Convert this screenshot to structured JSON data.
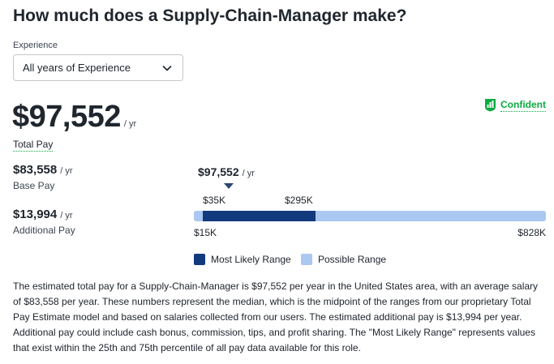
{
  "header": {
    "title": "How much does a Supply-Chain-Manager make?"
  },
  "experience": {
    "label": "Experience",
    "selected": "All years of Experience"
  },
  "confidence": {
    "label": "Confident",
    "color": "#0caa41"
  },
  "total_pay": {
    "value": "$97,552",
    "unit": "/ yr",
    "label": "Total Pay"
  },
  "base_pay": {
    "value": "$83,558",
    "unit": "/ yr",
    "label": "Base Pay"
  },
  "additional_pay": {
    "value": "$13,994",
    "unit": "/ yr",
    "label": "Additional Pay"
  },
  "range": {
    "median_label": "$97,552",
    "median_unit": "/ yr",
    "likely_low_label": "$35K",
    "likely_high_label": "$295K",
    "possible_low_label": "$15K",
    "possible_high_label": "$828K",
    "possible_low": 15,
    "possible_high": 828,
    "likely_low": 35,
    "likely_high": 295,
    "median": 97.552,
    "likely_color": "#133a7c",
    "possible_color": "#aac8f2"
  },
  "legend": {
    "likely": "Most Likely Range",
    "possible": "Possible Range"
  },
  "description": "The estimated total pay for a Supply-Chain-Manager is $97,552 per year in the United States area, with an average salary of $83,558 per year. These numbers represent the median, which is the midpoint of the ranges from our proprietary Total Pay Estimate model and based on salaries collected from our users. The estimated additional pay is $13,994 per year. Additional pay could include cash bonus, commission, tips, and profit sharing. The \"Most Likely Range\" represents values that exist within the 25th and 75th percentile of all pay data available for this role."
}
